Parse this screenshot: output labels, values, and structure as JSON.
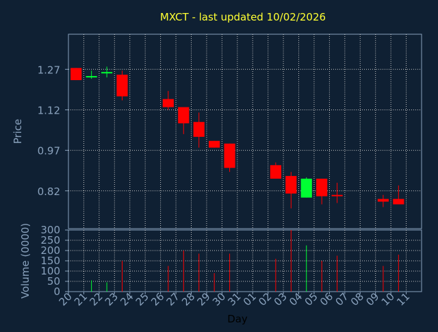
{
  "chart_data": {
    "type": "candlestick",
    "title": "MXCT - last updated 10/02/2026",
    "xlabel": "Day",
    "price_panel": {
      "ylabel": "Price",
      "yticks": [
        "1.27",
        "1.12",
        "0.97",
        "0.82"
      ],
      "ylim": [
        0.68,
        1.4
      ]
    },
    "volume_panel": {
      "ylabel": "Volume (0000)",
      "yticks": [
        "0",
        "50",
        "100",
        "150",
        "200",
        "250",
        "300"
      ],
      "ylim": [
        0,
        300
      ]
    },
    "categories": [
      "20",
      "21",
      "22",
      "23",
      "24",
      "25",
      "26",
      "27",
      "28",
      "29",
      "30",
      "31",
      "01",
      "02",
      "03",
      "04",
      "05",
      "06",
      "07",
      "08",
      "09",
      "10",
      "11"
    ],
    "candles": [
      {
        "day": "20",
        "open": 1.275,
        "high": 1.275,
        "low": 1.23,
        "close": 1.23,
        "volume": 0
      },
      {
        "day": "21",
        "open": 1.245,
        "high": 1.265,
        "low": 1.235,
        "close": 1.245,
        "volume": 55
      },
      {
        "day": "22",
        "open": 1.255,
        "high": 1.28,
        "low": 1.24,
        "close": 1.26,
        "volume": 45
      },
      {
        "day": "23",
        "open": 1.25,
        "high": 1.265,
        "low": 1.155,
        "close": 1.17,
        "volume": 150
      },
      {
        "day": "26",
        "open": 1.16,
        "high": 1.19,
        "low": 1.12,
        "close": 1.13,
        "volume": 125
      },
      {
        "day": "27",
        "open": 1.13,
        "high": 1.13,
        "low": 1.03,
        "close": 1.07,
        "volume": 200
      },
      {
        "day": "28",
        "open": 1.075,
        "high": 1.11,
        "low": 0.98,
        "close": 1.02,
        "volume": 185
      },
      {
        "day": "29",
        "open": 1.005,
        "high": 1.005,
        "low": 0.98,
        "close": 0.98,
        "volume": 90
      },
      {
        "day": "30",
        "open": 0.995,
        "high": 0.995,
        "low": 0.89,
        "close": 0.905,
        "volume": 185
      },
      {
        "day": "02",
        "open": 0.915,
        "high": 0.925,
        "low": 0.865,
        "close": 0.865,
        "volume": 160
      },
      {
        "day": "03",
        "open": 0.875,
        "high": 0.89,
        "low": 0.755,
        "close": 0.81,
        "volume": 300
      },
      {
        "day": "04",
        "open": 0.795,
        "high": 0.87,
        "low": 0.795,
        "close": 0.865,
        "volume": 225
      },
      {
        "day": "05",
        "open": 0.865,
        "high": 0.865,
        "low": 0.77,
        "close": 0.8,
        "volume": 150
      },
      {
        "day": "06",
        "open": 0.805,
        "high": 0.85,
        "low": 0.775,
        "close": 0.8,
        "volume": 175
      },
      {
        "day": "09",
        "open": 0.79,
        "high": 0.805,
        "low": 0.76,
        "close": 0.78,
        "volume": 125
      },
      {
        "day": "10",
        "open": 0.79,
        "high": 0.84,
        "low": 0.77,
        "close": 0.77,
        "volume": 180
      }
    ],
    "colors": {
      "background": "#0f2033",
      "up": "#00ff33",
      "down": "#ff0000",
      "grid": "#c8c8c8",
      "axis_text": "#8aa2bd",
      "title": "#ffff33"
    },
    "grid": true
  }
}
